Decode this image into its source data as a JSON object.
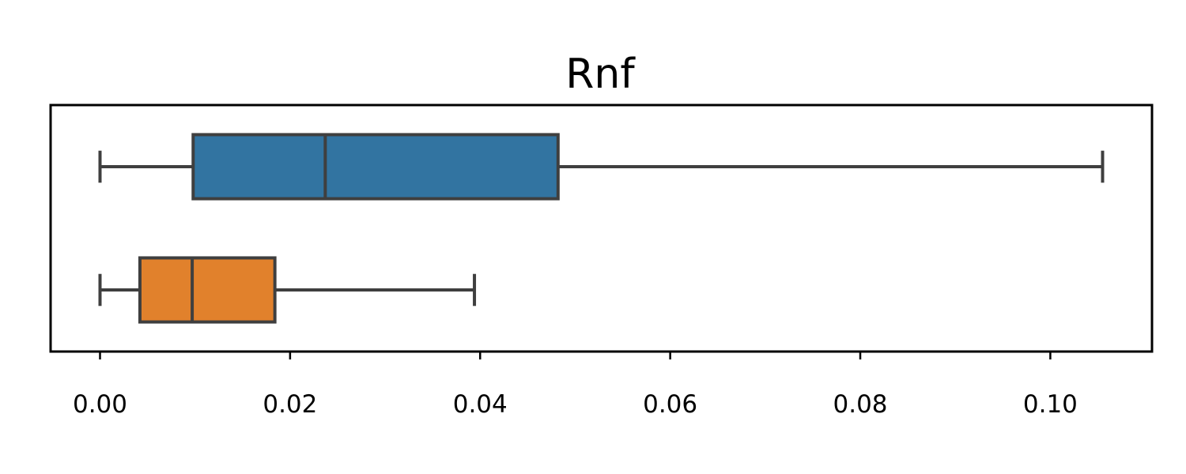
{
  "chart_data": {
    "type": "boxplot",
    "orientation": "horizontal",
    "title": "Rnf",
    "xlabel": "",
    "ylabel": "",
    "xlim": [
      -0.0052,
      0.1107
    ],
    "xticks": [
      0.0,
      0.02,
      0.04,
      0.06,
      0.08,
      0.1
    ],
    "xtick_labels": [
      "0.00",
      "0.02",
      "0.04",
      "0.06",
      "0.08",
      "0.10"
    ],
    "grid": false,
    "legend": "none",
    "series": [
      {
        "color": "#3274a1",
        "whisker_low": 0.0,
        "q1": 0.0098,
        "median": 0.0237,
        "q3": 0.0482,
        "whisker_high": 0.1055
      },
      {
        "color": "#e1812c",
        "whisker_low": 0.0,
        "q1": 0.0042,
        "median": 0.0097,
        "q3": 0.0184,
        "whisker_high": 0.0394
      }
    ],
    "line_color": "#3f3f3f"
  }
}
